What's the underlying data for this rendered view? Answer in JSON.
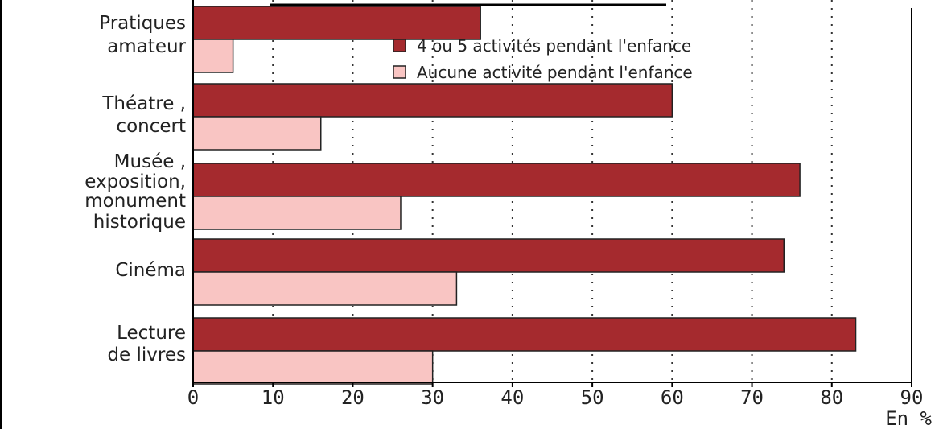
{
  "chart_data": {
    "type": "bar",
    "orientation": "horizontal",
    "categories": [
      [
        "Pratiques",
        "amateur"
      ],
      [
        "Théatre ,",
        "concert"
      ],
      [
        "Musée ,",
        "exposition,",
        "monument",
        "historique"
      ],
      [
        "Cinéma"
      ],
      [
        "Lecture",
        "de livres"
      ]
    ],
    "series": [
      {
        "name": "4 ou 5 activités pendant l'enfance",
        "color": "#a52a2e",
        "values": [
          36,
          60,
          76,
          74,
          83
        ]
      },
      {
        "name": "Aucune activité pendant l'enfance",
        "color": "#f9c5c3",
        "values": [
          5,
          16,
          26,
          33,
          30
        ]
      }
    ],
    "xlim": [
      0,
      90
    ],
    "xticks": [
      "0",
      "10",
      "20",
      "30",
      "40",
      "50",
      "60",
      "70",
      "80",
      "90"
    ],
    "xlabel": "En %",
    "grid": "vertical dotted",
    "legend_position": "top-right"
  }
}
